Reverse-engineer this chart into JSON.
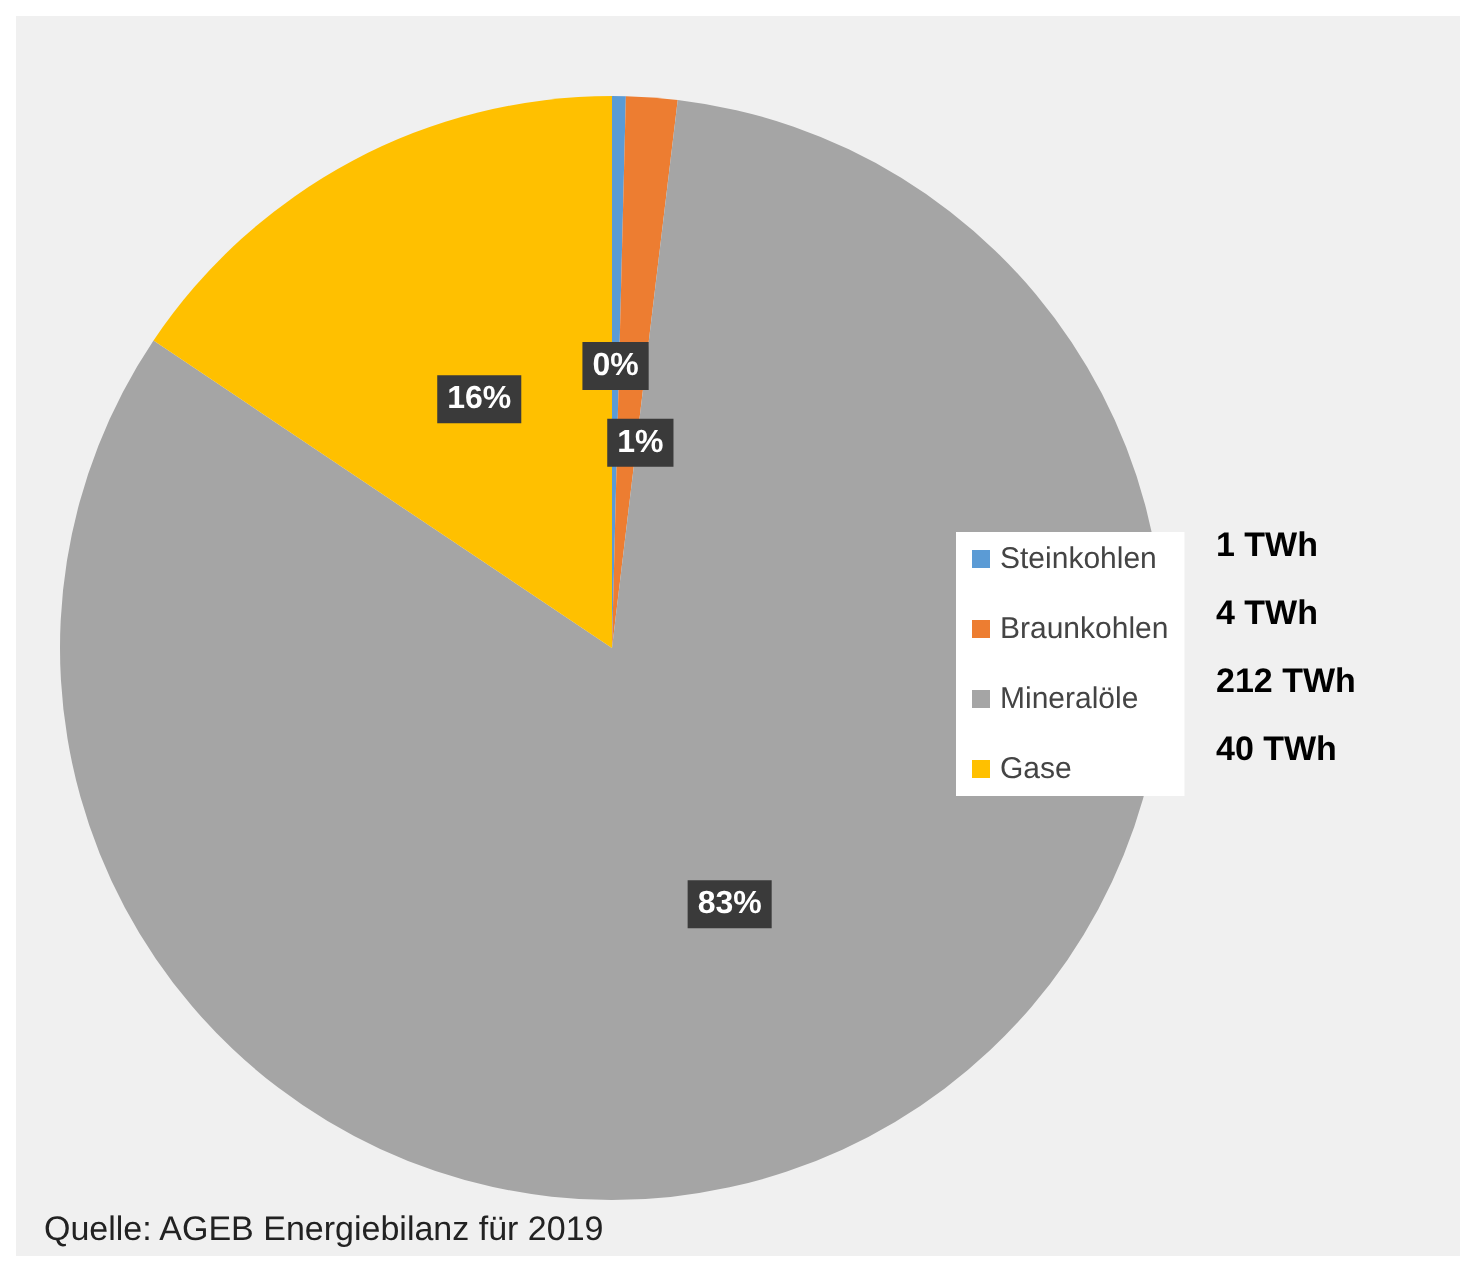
{
  "chart_data": {
    "type": "pie",
    "categories": [
      "Steinkohlen",
      "Braunkohlen",
      "Mineralöle",
      "Gase"
    ],
    "values": [
      0.4,
      1.5,
      82.5,
      15.6
    ],
    "colors": [
      "#5b9bd5",
      "#ed7d31",
      "#a5a5a5",
      "#ffc000"
    ],
    "value_labels": [
      "0%",
      "1%",
      "83%",
      "16%"
    ],
    "legend": "right",
    "annotations": [
      "1 TWh",
      "4 TWh",
      "212 TWh",
      "40 TWh",
      "Quelle: AGEB Energiebilanz für 2019"
    ]
  }
}
